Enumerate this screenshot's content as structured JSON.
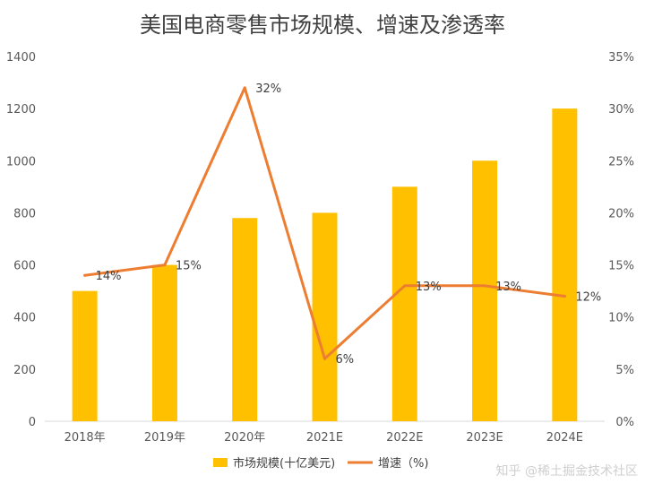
{
  "chart_data": {
    "type": "bar+line",
    "title": "美国电商零售市场规模、增速及渗透率",
    "categories": [
      "2018年",
      "2019年",
      "2020年",
      "2021E",
      "2022E",
      "2023E",
      "2024E"
    ],
    "series": [
      {
        "name": "市场规模(十亿美元)",
        "type": "bar",
        "axis": "left",
        "color": "#FFC000",
        "values": [
          500,
          600,
          780,
          800,
          900,
          1000,
          1200
        ]
      },
      {
        "name": "增速（%)",
        "type": "line",
        "axis": "right",
        "color": "#ED7D31",
        "values": [
          14,
          15,
          32,
          6,
          13,
          13,
          12
        ],
        "data_labels": [
          "14%",
          "15%",
          "32%",
          "6%",
          "13%",
          "13%",
          "12%"
        ]
      }
    ],
    "y_left": {
      "min": 0,
      "max": 1400,
      "ticks": [
        "0",
        "200",
        "400",
        "600",
        "800",
        "1000",
        "1200",
        "1400"
      ]
    },
    "y_right": {
      "min": 0,
      "max": 35,
      "ticks": [
        "0%",
        "5%",
        "10%",
        "15%",
        "20%",
        "25%",
        "30%",
        "35%"
      ]
    },
    "legend_position": "bottom",
    "grid": false
  },
  "watermark": "知乎 @稀土掘金技术社区"
}
